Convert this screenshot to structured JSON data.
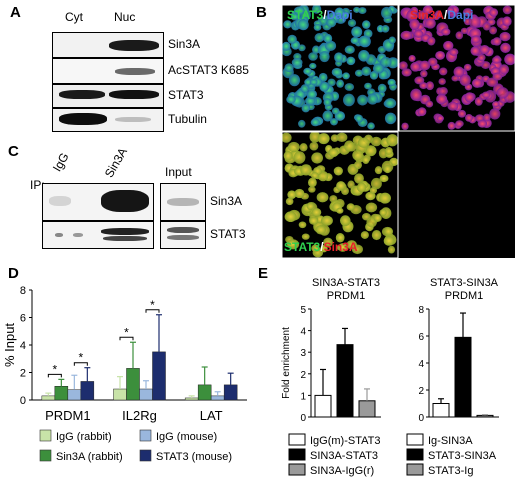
{
  "panel_letters": {
    "a": "A",
    "b": "B",
    "c": "C",
    "d": "D",
    "e": "E"
  },
  "panel_a": {
    "lanes": [
      "Cyt",
      "Nuc"
    ],
    "rows": [
      "Sin3A",
      "AcSTAT3 K685",
      "STAT3",
      "Tubulin"
    ]
  },
  "panel_b": {
    "tl": {
      "a": "STAT3",
      "sep": "/",
      "b": "Dapi"
    },
    "tr": {
      "a": "Sin3A",
      "sep": "/",
      "b": "Dapi"
    },
    "bl": {
      "a": "STAT3",
      "sep": "/",
      "b": "Sin3A"
    },
    "colors": {
      "stat3": "#2fd14f",
      "sin3a": "#e8232a",
      "dapi": "#4a7fe0"
    }
  },
  "panel_c": {
    "ip": "IP:",
    "lanes": [
      "IgG",
      "Sin3A"
    ],
    "input": "Input",
    "rows": [
      "Sin3A",
      "STAT3"
    ]
  },
  "chart_data": [
    {
      "type": "bar",
      "ylabel": "% Input",
      "ylim": [
        0,
        8
      ],
      "yticks": [
        0,
        2,
        4,
        6,
        8
      ],
      "categories": [
        "PRDM1",
        "IL2Rg",
        "LAT"
      ],
      "series": [
        {
          "name": "IgG (rabbit)",
          "color": "#c8e3a8",
          "values": [
            0.3,
            0.8,
            0.15
          ],
          "errors": [
            0.2,
            0.9,
            0.15
          ]
        },
        {
          "name": "Sin3A (rabbit)",
          "color": "#3c8f3c",
          "values": [
            1.0,
            2.3,
            1.1
          ],
          "errors": [
            0.5,
            1.9,
            1.3
          ]
        },
        {
          "name": "IgG (mouse)",
          "color": "#9ab7dd",
          "values": [
            0.75,
            0.8,
            0.3
          ],
          "errors": [
            1.05,
            0.6,
            0.3
          ]
        },
        {
          "name": "STAT3 (mouse)",
          "color": "#1d2d6e",
          "values": [
            1.35,
            3.5,
            1.1
          ],
          "errors": [
            1.0,
            2.7,
            0.85
          ]
        }
      ],
      "significance": [
        {
          "category": "PRDM1",
          "from": 0,
          "to": 1,
          "label": "*"
        },
        {
          "category": "PRDM1",
          "from": 2,
          "to": 3,
          "label": "*"
        },
        {
          "category": "IL2Rg",
          "from": 0,
          "to": 1,
          "label": "*"
        },
        {
          "category": "IL2Rg",
          "from": 2,
          "to": 3,
          "label": "*"
        }
      ]
    },
    {
      "type": "bar",
      "title": "SIN3A-STAT3\nPRDM1",
      "ylabel": "Fold enrichment",
      "ylim": [
        0,
        5
      ],
      "yticks": [
        0,
        1,
        2,
        3,
        4,
        5
      ],
      "series": [
        {
          "name": "IgG(m)-STAT3",
          "color": "#ffffff",
          "value": 1.0,
          "error": 1.2
        },
        {
          "name": "SIN3A-STAT3",
          "color": "#000000",
          "value": 3.35,
          "error": 0.75
        },
        {
          "name": "SIN3A-IgG(r)",
          "color": "#9a9a9a",
          "value": 0.75,
          "error": 0.55
        }
      ]
    },
    {
      "type": "bar",
      "title": "STAT3-SIN3A\nPRDM1",
      "ylim": [
        0,
        8
      ],
      "yticks": [
        0,
        2,
        4,
        6,
        8
      ],
      "series": [
        {
          "name": "Ig-SIN3A",
          "color": "#ffffff",
          "value": 1.0,
          "error": 0.35
        },
        {
          "name": "STAT3-SIN3A",
          "color": "#000000",
          "value": 5.9,
          "error": 1.8
        },
        {
          "name": "STAT3-Ig",
          "color": "#9a9a9a",
          "value": 0.12,
          "error": 0.05
        }
      ]
    }
  ]
}
